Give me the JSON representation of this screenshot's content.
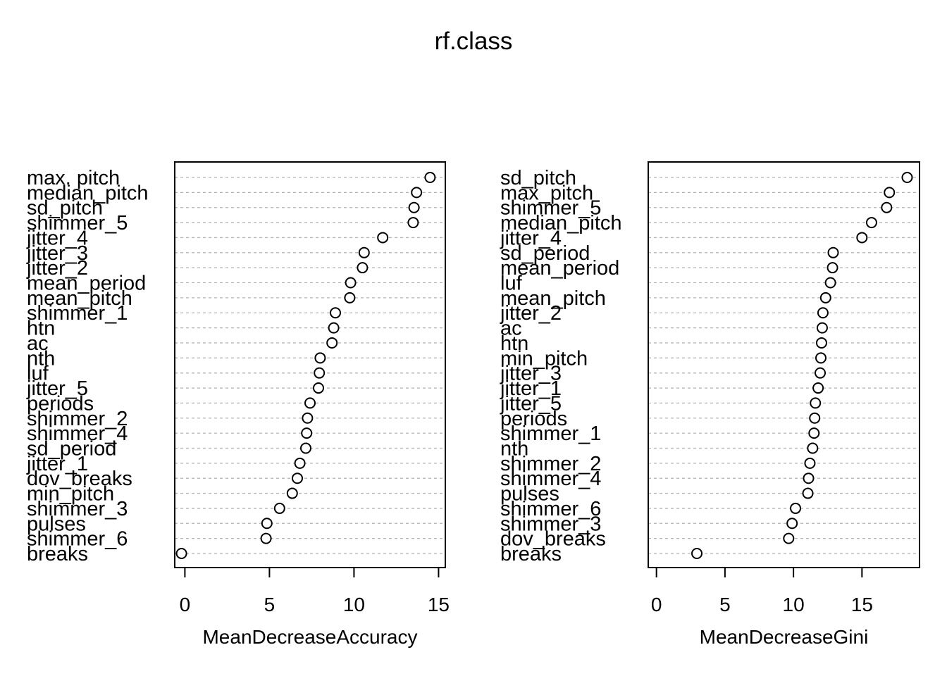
{
  "chart_data": {
    "type": "dotchart",
    "title": "rf.class",
    "panels": [
      {
        "xlabel": "MeanDecreaseAccuracy",
        "xticks": [
          0,
          5,
          10,
          15
        ],
        "xlim": [
          -0.6,
          15.4
        ],
        "grid": true,
        "variables": [
          {
            "name": "max. pitch",
            "value": 14.5
          },
          {
            "name": "median_pitch",
            "value": 13.7
          },
          {
            "name": "sd_pitch",
            "value": 13.55
          },
          {
            "name": "shimmer_5",
            "value": 13.5
          },
          {
            "name": "jitter_4",
            "value": 11.7
          },
          {
            "name": "jitter_3",
            "value": 10.6
          },
          {
            "name": "jitter_2",
            "value": 10.5
          },
          {
            "name": "mean_period",
            "value": 9.8
          },
          {
            "name": "mean_pitch",
            "value": 9.75
          },
          {
            "name": "shimmer_1",
            "value": 8.9
          },
          {
            "name": "htn",
            "value": 8.8
          },
          {
            "name": "ac",
            "value": 8.7
          },
          {
            "name": "nth",
            "value": 8.0
          },
          {
            "name": "luf",
            "value": 7.95
          },
          {
            "name": "jitter_5",
            "value": 7.9
          },
          {
            "name": "periods",
            "value": 7.4
          },
          {
            "name": "shimmer_2",
            "value": 7.25
          },
          {
            "name": "shimmer_4",
            "value": 7.2
          },
          {
            "name": "sd_period",
            "value": 7.15
          },
          {
            "name": "jitter_1",
            "value": 6.8
          },
          {
            "name": "dov_breaks",
            "value": 6.65
          },
          {
            "name": "min_pitch",
            "value": 6.35
          },
          {
            "name": "shimmer_3",
            "value": 5.6
          },
          {
            "name": "pulses",
            "value": 4.85
          },
          {
            "name": "shimmer_6",
            "value": 4.8
          },
          {
            "name": "breaks",
            "value": -0.2
          }
        ]
      },
      {
        "xlabel": "MeanDecreaseGini",
        "xticks": [
          0,
          5,
          10,
          15
        ],
        "xlim": [
          -0.6,
          19.2
        ],
        "grid": true,
        "variables": [
          {
            "name": "sd_pitch",
            "value": 18.3
          },
          {
            "name": "max_pitch",
            "value": 17.0
          },
          {
            "name": "shimmer_5",
            "value": 16.8
          },
          {
            "name": "median_pitch",
            "value": 15.7
          },
          {
            "name": "jitter_4",
            "value": 15.0
          },
          {
            "name": "sd_period",
            "value": 12.9
          },
          {
            "name": "mean_period",
            "value": 12.85
          },
          {
            "name": "luf",
            "value": 12.7
          },
          {
            "name": "mean_pitch",
            "value": 12.35
          },
          {
            "name": "jitter_2",
            "value": 12.15
          },
          {
            "name": "ac",
            "value": 12.1
          },
          {
            "name": "htn",
            "value": 12.05
          },
          {
            "name": "min_pitch",
            "value": 12.0
          },
          {
            "name": "jitter_3",
            "value": 11.95
          },
          {
            "name": "jitter_1",
            "value": 11.8
          },
          {
            "name": "jitter_5",
            "value": 11.6
          },
          {
            "name": "periods",
            "value": 11.55
          },
          {
            "name": "shimmer_1",
            "value": 11.5
          },
          {
            "name": "nth",
            "value": 11.4
          },
          {
            "name": "shimmer_2",
            "value": 11.2
          },
          {
            "name": "shimmer_4",
            "value": 11.1
          },
          {
            "name": "pulses",
            "value": 11.05
          },
          {
            "name": "shimmer_6",
            "value": 10.15
          },
          {
            "name": "shimmer_3",
            "value": 9.9
          },
          {
            "name": "dov_breaks",
            "value": 9.65
          },
          {
            "name": "breaks",
            "value": 2.95
          }
        ]
      }
    ]
  }
}
